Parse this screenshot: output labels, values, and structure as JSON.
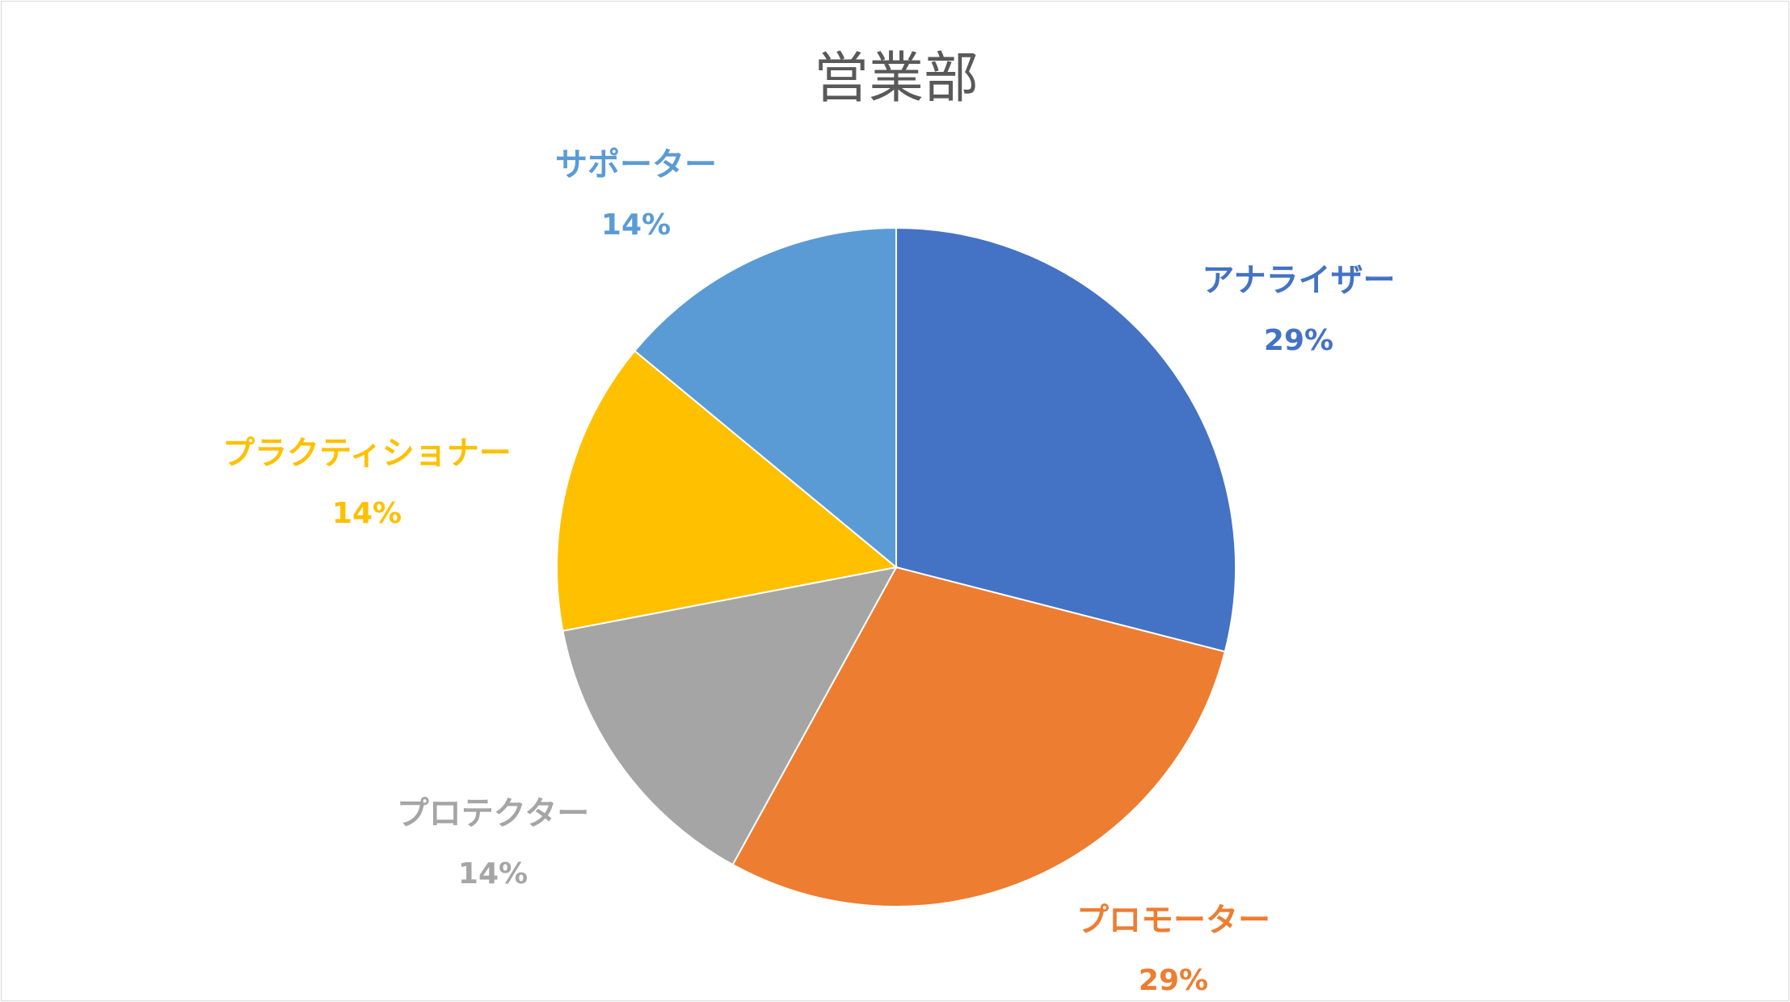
{
  "chart_data": {
    "type": "pie",
    "title": "営業部",
    "start_angle_deg": 0,
    "direction": "clockwise",
    "slices": [
      {
        "label": "アナライザー",
        "value": 29,
        "display": "29%",
        "color": "#4472C4"
      },
      {
        "label": "プロモーター",
        "value": 29,
        "display": "29%",
        "color": "#ED7D31"
      },
      {
        "label": "プロテクター",
        "value": 14,
        "display": "14%",
        "color": "#A5A5A5"
      },
      {
        "label": "プラクティショナー",
        "value": 14,
        "display": "14%",
        "color": "#FFC000"
      },
      {
        "label": "サポーター",
        "value": 14,
        "display": "14%",
        "color": "#5B9BD5"
      }
    ],
    "legend": "none",
    "background": "#FFFFFF",
    "border_color": "#D9D9D9"
  }
}
